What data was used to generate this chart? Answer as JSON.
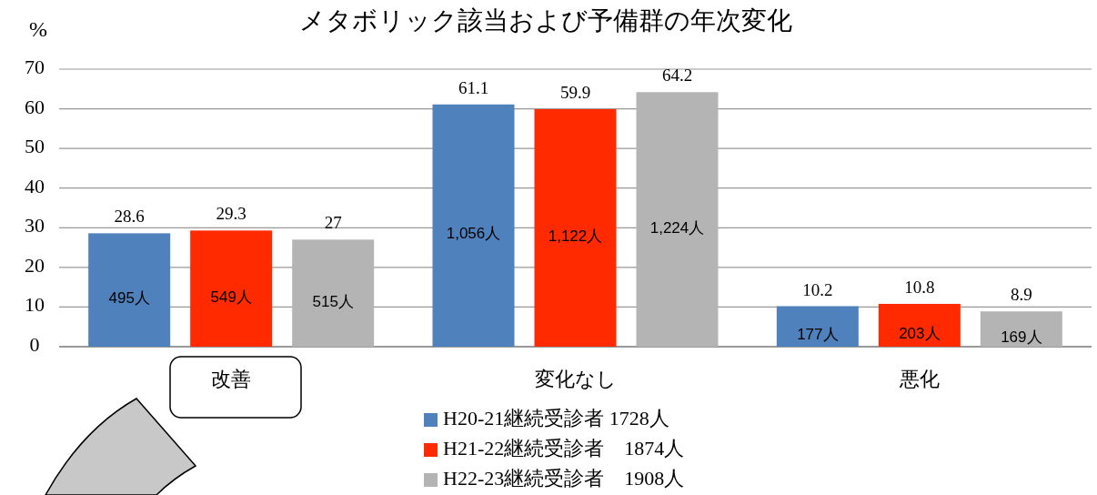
{
  "chart_data": {
    "type": "bar",
    "title": "メタボリック該当および予備群の年次変化",
    "ylabel": "%",
    "categories": [
      "改善",
      "変化なし",
      "悪化"
    ],
    "series": [
      {
        "name": "H20-21継続受診者 1728人",
        "color": "#4f81bd",
        "values": [
          28.6,
          61.1,
          10.2
        ]
      },
      {
        "name": "H21-22継続受診者　1874人",
        "color": "#ff2a00",
        "values": [
          29.3,
          59.9,
          10.8
        ]
      },
      {
        "name": "H22-23継続受診者　1908人",
        "color": "#b4b4b4",
        "values": [
          27,
          64.2,
          8.9
        ]
      }
    ],
    "annotations": [
      "495人",
      "1,056人",
      "177人",
      "549人",
      "1,122人",
      "203人",
      "515人",
      "1,224人",
      "169人"
    ],
    "ylim": [
      0,
      70
    ],
    "yticks": [
      0,
      10,
      20,
      30,
      40,
      50,
      60,
      70
    ],
    "grid": "y",
    "legend": "bottom",
    "data_labels": true
  }
}
